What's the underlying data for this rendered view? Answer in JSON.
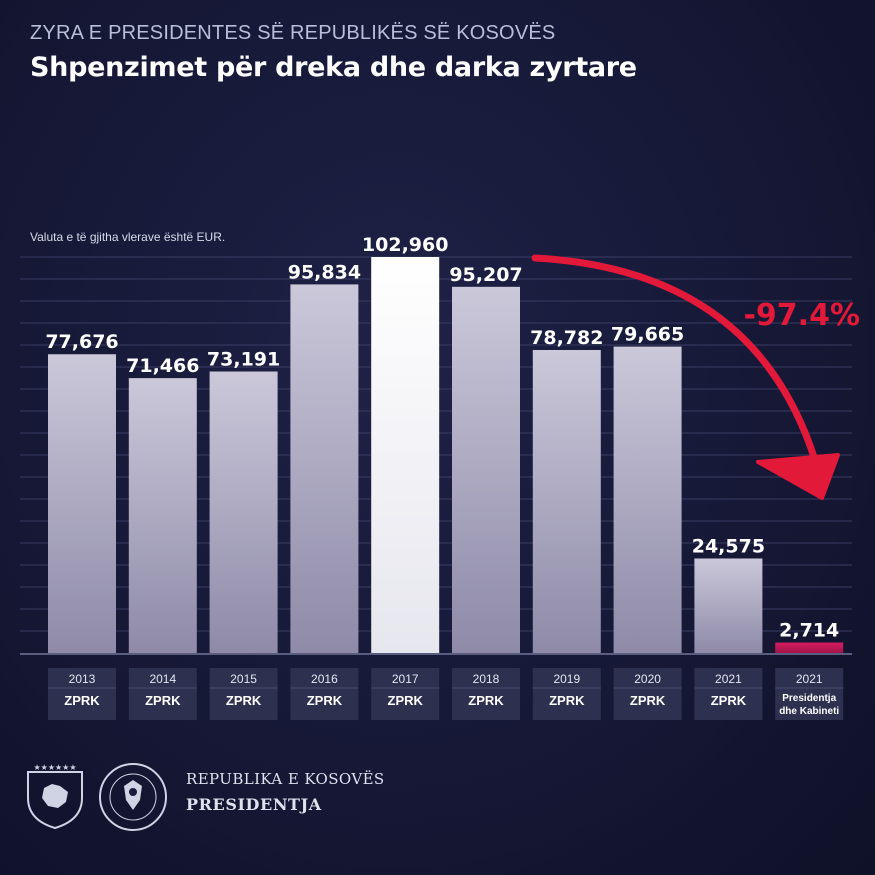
{
  "header": {
    "office": "ZYRA E PRESIDENTES SË REPUBLIKËS SË KOSOVËS",
    "title": "Shpenzimet për dreka dhe darka zyrtare"
  },
  "note": "Valuta e të gjitha vlerave është EUR.",
  "chart_data": {
    "type": "bar",
    "title": "Shpenzimet për dreka dhe darka zyrtare",
    "currency": "EUR",
    "categories": [
      {
        "year": "2013",
        "label": "ZPRK"
      },
      {
        "year": "2014",
        "label": "ZPRK"
      },
      {
        "year": "2015",
        "label": "ZPRK"
      },
      {
        "year": "2016",
        "label": "ZPRK"
      },
      {
        "year": "2017",
        "label": "ZPRK"
      },
      {
        "year": "2018",
        "label": "ZPRK"
      },
      {
        "year": "2019",
        "label": "ZPRK"
      },
      {
        "year": "2020",
        "label": "ZPRK"
      },
      {
        "year": "2021",
        "label": "ZPRK"
      },
      {
        "year": "2021",
        "label": "Presidentja\ndhe Kabineti"
      }
    ],
    "values": [
      77676,
      71466,
      73191,
      95834,
      102960,
      95207,
      78782,
      79665,
      24575,
      2714
    ],
    "value_labels": [
      "77,676",
      "71,466",
      "73,191",
      "95,834",
      "102,960",
      "95,207",
      "78,782",
      "79,665",
      "24,575",
      "2,714"
    ],
    "ylim": [
      0,
      102960
    ],
    "highlight_max_color": "#ffffff",
    "bar_color": "#b9b6cc",
    "last_bar_color": "#c2185b",
    "grid": true,
    "annotation": {
      "text": "-97.4%",
      "color": "#e3193a"
    }
  },
  "footer": {
    "republika": "REPUBLIKA E KOSOVËS",
    "presidentja": "PRESIDENTJA"
  }
}
